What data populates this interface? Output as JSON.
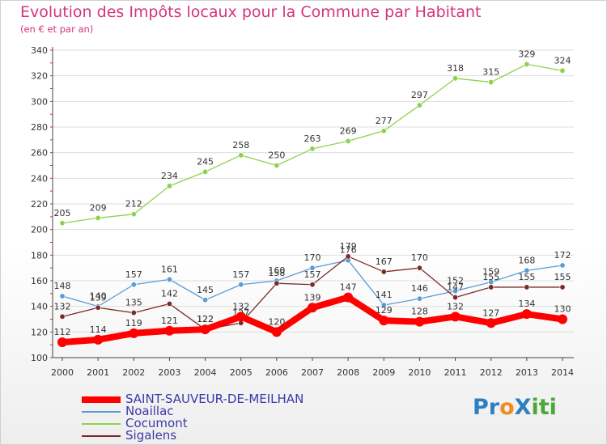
{
  "header": {
    "title": "Evolution des Impôts locaux pour la Commune par Habitant",
    "subtitle": "(en € et par an)"
  },
  "logo": {
    "text": "ProXiti",
    "colors": [
      "#2d7fc1",
      "#f08c1e",
      "#49a83a"
    ]
  },
  "chart_data": {
    "type": "line",
    "title": "Evolution des Impôts locaux pour la Commune par Habitant",
    "subtitle": "(en € et par an)",
    "x": [
      "2000",
      "2001",
      "2002",
      "2003",
      "2004",
      "2005",
      "2006",
      "2007",
      "2008",
      "2009",
      "2010",
      "2011",
      "2012",
      "2013",
      "2014"
    ],
    "ylim": [
      100,
      340
    ],
    "yticks": [
      100,
      120,
      140,
      160,
      180,
      200,
      220,
      240,
      260,
      280,
      300,
      320,
      340
    ],
    "grid": "horizontal",
    "legend_position": "bottom-left",
    "series": [
      {
        "name": "Cocumont",
        "color": "#8fd14f",
        "values": [
          205,
          209,
          212,
          234,
          245,
          258,
          250,
          263,
          269,
          277,
          297,
          318,
          315,
          329,
          324
        ],
        "labels": [
          "205",
          "209",
          "212",
          "234",
          "245",
          "258",
          "250",
          "263",
          "269",
          "277",
          "297",
          "318",
          "315",
          "329",
          "324"
        ],
        "thick": false
      },
      {
        "name": "Noaillac",
        "color": "#5b9bd5",
        "values": [
          148,
          140,
          157,
          161,
          145,
          157,
          160,
          170,
          176,
          141,
          146,
          152,
          159,
          168,
          172
        ],
        "labels": [
          "148",
          "140",
          "157",
          "161",
          "145",
          "157",
          "160",
          "170",
          "176",
          "141",
          "146",
          "152",
          "159",
          "168",
          "172"
        ],
        "thick": false
      },
      {
        "name": "Sigalens",
        "color": "#7b2a2a",
        "values": [
          132,
          139,
          135,
          142,
          122,
          127,
          158,
          157,
          179,
          167,
          170,
          147,
          155,
          155,
          155
        ],
        "labels": [
          "132",
          "139",
          "135",
          "142",
          "122",
          "127",
          "158",
          "157",
          "179",
          "167",
          "170",
          "147",
          "155",
          "155",
          "155"
        ],
        "thick": false
      },
      {
        "name": "SAINT-SAUVEUR-DE-MEILHAN",
        "color": "#ff0000",
        "values": [
          112,
          114,
          119,
          121,
          122,
          132,
          120,
          139,
          147,
          129,
          128,
          132,
          127,
          134,
          130
        ],
        "labels": [
          "112",
          "114",
          "119",
          "121",
          "122",
          "132",
          "120",
          "139",
          "147",
          "129",
          "128",
          "132",
          "127",
          "134",
          "130"
        ],
        "thick": true
      }
    ],
    "legend_order": [
      "SAINT-SAUVEUR-DE-MEILHAN",
      "Noaillac",
      "Cocumont",
      "Sigalens"
    ]
  }
}
